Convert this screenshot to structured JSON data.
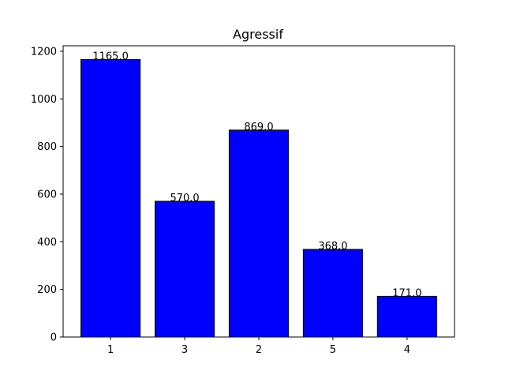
{
  "chart_data": {
    "type": "bar",
    "title": "Agressif",
    "xlabel": "",
    "ylabel": "",
    "categories": [
      "1",
      "3",
      "2",
      "5",
      "4"
    ],
    "values": [
      1165.0,
      570.0,
      869.0,
      368.0,
      171.0
    ],
    "value_labels": [
      "1165.0",
      "570.0",
      "869.0",
      "368.0",
      "171.0"
    ],
    "yticks": [
      "0",
      "200",
      "400",
      "600",
      "800",
      "1000",
      "1200"
    ],
    "ylim": [
      0,
      1223
    ],
    "grid": false,
    "legend": "none",
    "bar_color": "#0000ff",
    "bar_edge_color": "#000000"
  }
}
